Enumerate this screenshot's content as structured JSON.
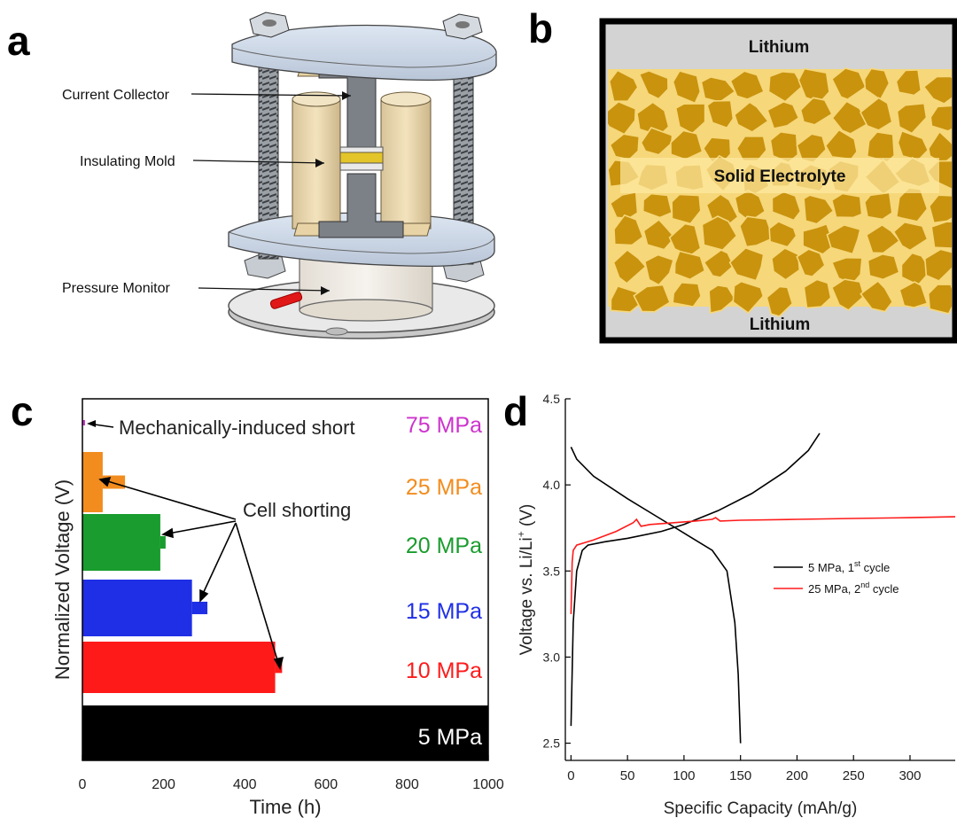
{
  "panels": {
    "a": {
      "letter": "a",
      "callouts": [
        "Current Collector",
        "Insulating Mold",
        "Pressure Monitor"
      ]
    },
    "b": {
      "letter": "b",
      "top_label": "Lithium",
      "middle_label": "Solid Electrolyte",
      "bottom_label": "Lithium"
    },
    "c": {
      "letter": "c",
      "annotation_short": "Mechanically-induced short",
      "annotation_shorting": "Cell shorting"
    },
    "d": {
      "letter": "d"
    }
  },
  "colors": {
    "mpa75": "#cc33cc",
    "mpa25": "#f28c1e",
    "mpa20": "#1a9c2e",
    "mpa15": "#1f2fe6",
    "mpa10": "#ff1a1a",
    "mpa5": "#000000",
    "grain": "#c9930e",
    "grain_edge": "#f6d77a",
    "lithium": "#d3d3d3"
  },
  "chart_data": [
    {
      "id": "c",
      "type": "area",
      "xlabel": "Time (h)",
      "ylabel": "Normalized Voltage (V)",
      "xlim": [
        0,
        1000
      ],
      "xticks": [
        0,
        200,
        400,
        600,
        800,
        1000
      ],
      "series": [
        {
          "name": "75 MPa",
          "color": "#cc33cc",
          "end": 5,
          "short_end": 5
        },
        {
          "name": "25 MPa",
          "color": "#f28c1e",
          "end": 50,
          "short_end": 105
        },
        {
          "name": "20 MPa",
          "color": "#1a9c2e",
          "end": 192,
          "short_end": 205
        },
        {
          "name": "15 MPa",
          "color": "#1f2fe6",
          "end": 270,
          "short_end": 308
        },
        {
          "name": "10 MPa",
          "color": "#ff1a1a",
          "end": 475,
          "short_end": 492
        },
        {
          "name": "5 MPa",
          "color": "#000000",
          "end": 1000,
          "short_end": 1000
        }
      ]
    },
    {
      "id": "d",
      "type": "line",
      "xlabel": "Specific Capacity (mAh/g)",
      "ylabel": "Voltage vs. Li/Li+ (V)",
      "ylabel_parts": {
        "prefix": "Voltage vs. Li/Li",
        "sup": "+",
        "suffix": " (V)"
      },
      "xlim": [
        -5,
        340
      ],
      "ylim": [
        2.4,
        4.5
      ],
      "xticks": [
        0,
        50,
        100,
        150,
        200,
        250,
        300
      ],
      "yticks": [
        2.5,
        3.0,
        3.5,
        4.0,
        4.5
      ],
      "series": [
        {
          "name": "5 MPa, 1st cycle",
          "legend": {
            "prefix": "5 MPa, 1",
            "sup": "st",
            "suffix": " cycle"
          },
          "color": "#000000",
          "branches": [
            [
              [
                0,
                2.6
              ],
              [
                2,
                3.2
              ],
              [
                5,
                3.5
              ],
              [
                10,
                3.62
              ],
              [
                15,
                3.65
              ],
              [
                30,
                3.67
              ],
              [
                50,
                3.69
              ],
              [
                80,
                3.73
              ],
              [
                100,
                3.77
              ],
              [
                130,
                3.85
              ],
              [
                160,
                3.95
              ],
              [
                190,
                4.08
              ],
              [
                210,
                4.2
              ],
              [
                220,
                4.3
              ]
            ],
            [
              [
                0,
                4.22
              ],
              [
                5,
                4.15
              ],
              [
                20,
                4.05
              ],
              [
                50,
                3.92
              ],
              [
                80,
                3.8
              ],
              [
                105,
                3.7
              ],
              [
                125,
                3.62
              ],
              [
                138,
                3.5
              ],
              [
                145,
                3.2
              ],
              [
                148,
                2.9
              ],
              [
                150,
                2.5
              ]
            ]
          ]
        },
        {
          "name": "25 MPa, 2nd cycle",
          "legend": {
            "prefix": "25 MPa, 2",
            "sup": "nd",
            "suffix": " cycle"
          },
          "color": "#ff1a1a",
          "branches": [
            [
              [
                0,
                3.25
              ],
              [
                1,
                3.55
              ],
              [
                2,
                3.62
              ],
              [
                5,
                3.65
              ],
              [
                20,
                3.68
              ],
              [
                40,
                3.73
              ],
              [
                55,
                3.78
              ],
              [
                58,
                3.8
              ],
              [
                62,
                3.76
              ],
              [
                70,
                3.77
              ],
              [
                90,
                3.78
              ],
              [
                110,
                3.79
              ],
              [
                125,
                3.8
              ],
              [
                128,
                3.81
              ],
              [
                132,
                3.79
              ],
              [
                150,
                3.795
              ],
              [
                200,
                3.8
              ],
              [
                250,
                3.805
              ],
              [
                300,
                3.81
              ],
              [
                340,
                3.815
              ]
            ]
          ]
        }
      ]
    }
  ]
}
